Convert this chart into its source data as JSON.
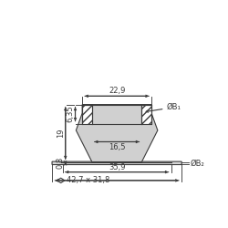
{
  "bg_color": "#ffffff",
  "line_color": "#3a3a3a",
  "dim_22_9": "22,9",
  "dim_6_35": "6,35",
  "dim_19": "19",
  "dim_0_8": "0,8",
  "dim_16_5": "16,5",
  "dim_35_9": "35,9",
  "dim_42_7": "42,7 x 31,8",
  "label_B1": "ØB₁",
  "label_B2": "ØB₂",
  "font_size": 6.0
}
